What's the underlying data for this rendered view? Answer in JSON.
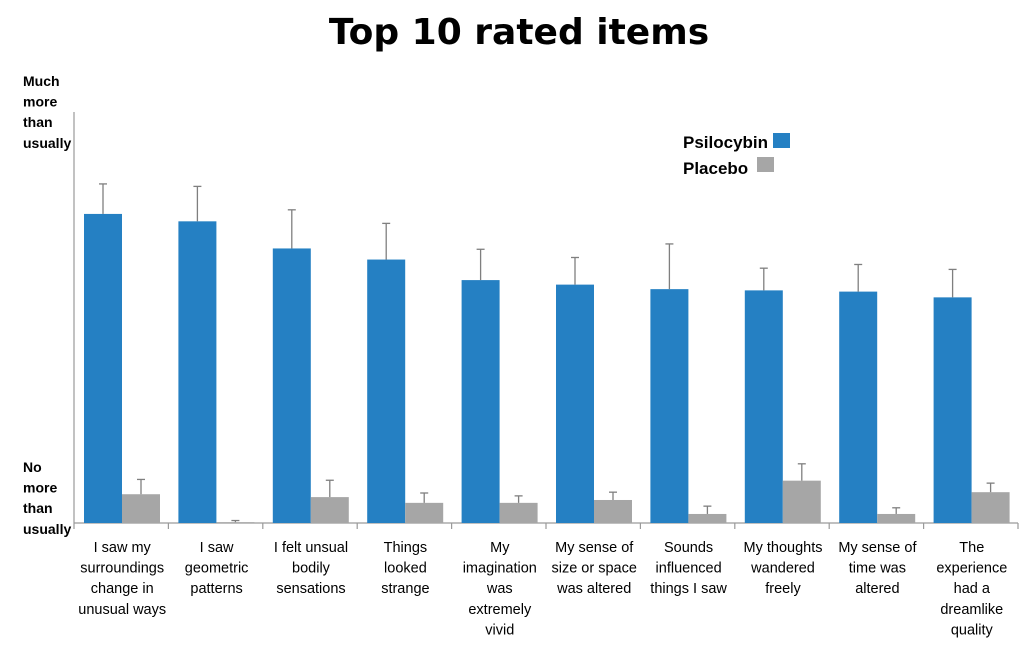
{
  "chart_data": {
    "type": "bar",
    "title": "Top 10 rated items",
    "y_top_label": [
      "Much",
      "more",
      "than",
      "usually"
    ],
    "y_bottom_label": [
      "No",
      "more",
      "than",
      "usually"
    ],
    "ylim": [
      0,
      100
    ],
    "grid": false,
    "legend_position": "top-right",
    "categories": [
      [
        "I saw my",
        "surroundings",
        "change in",
        "unusual ways"
      ],
      [
        "I saw",
        "geometric",
        "patterns"
      ],
      [
        "I felt unsual",
        "bodily",
        "sensations"
      ],
      [
        "Things",
        "looked",
        "strange"
      ],
      [
        "My",
        "imagination",
        "was",
        "extremely",
        "vivid"
      ],
      [
        "My sense of",
        "size or space",
        "was altered"
      ],
      [
        "Sounds",
        "influenced",
        "things I saw"
      ],
      [
        "My thoughts",
        "wandered",
        "freely"
      ],
      [
        "My sense of",
        "time was",
        "altered"
      ],
      [
        "The",
        "experience",
        "had a",
        "dreamlike",
        "quality"
      ]
    ],
    "series": [
      {
        "name": "Psilocybin",
        "color": "#2580C3",
        "values": [
          75.2,
          73.4,
          66.8,
          64.1,
          59.1,
          58.0,
          56.9,
          56.6,
          56.3,
          54.9
        ],
        "errors": [
          7.3,
          8.5,
          9.4,
          8.8,
          7.5,
          6.6,
          11.0,
          5.4,
          6.6,
          6.8
        ]
      },
      {
        "name": "Placebo",
        "color": "#A6A6A6",
        "values": [
          7.0,
          0.2,
          6.3,
          4.9,
          4.9,
          5.6,
          2.2,
          10.3,
          2.2,
          7.5
        ],
        "errors": [
          3.6,
          0.4,
          4.1,
          2.4,
          1.7,
          1.9,
          1.9,
          4.1,
          1.5,
          2.2
        ]
      }
    ]
  }
}
